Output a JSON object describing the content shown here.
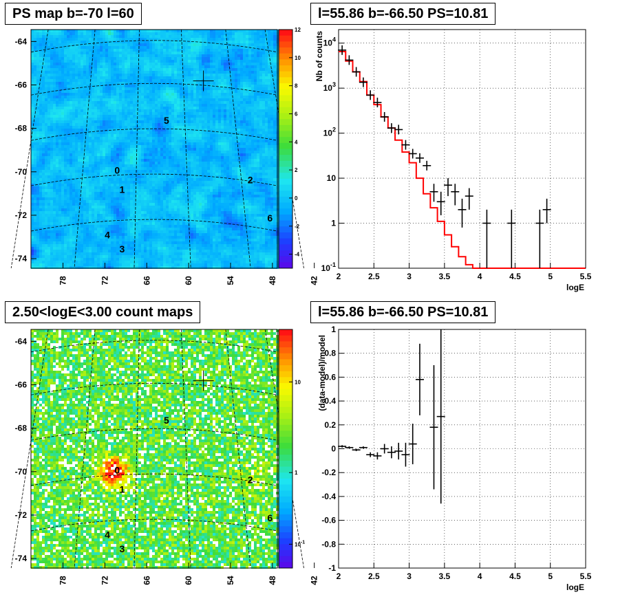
{
  "titles": {
    "top_left": "PS map b=-70 l=60",
    "top_right": "l=55.86 b=-66.50 PS=10.81",
    "bottom_left": "2.50<logE<3.00 count maps",
    "bottom_right": "l=55.86 b=-66.50 PS=10.81"
  },
  "colors": {
    "model_line": "#ff0000",
    "data_points": "#000000",
    "map_background_top": "#22e8f0",
    "map_background_bottom": "#55e040"
  },
  "chart_data": [
    {
      "type": "heatmap",
      "title": "PS map b=-70 l=60",
      "xticks": [
        "78",
        "72",
        "66",
        "60",
        "54",
        "48",
        "42"
      ],
      "yticks": [
        "-64",
        "-66",
        "-68",
        "-70",
        "-72",
        "-74"
      ],
      "colorbar": {
        "range": [
          -5,
          12
        ],
        "ticks": [
          "12",
          "10",
          "8",
          "6",
          "4",
          "2",
          "0",
          "-2",
          "-4"
        ]
      },
      "source_labels": [
        "0",
        "1",
        "2",
        "3",
        "4",
        "5",
        "6"
      ],
      "marker": "cross at l=55.86 b=-66.50"
    },
    {
      "type": "line",
      "title": "l=55.86 b=-66.50 PS=10.81",
      "xlabel": "logE",
      "ylabel": "Nb of counts",
      "xlim": [
        2,
        5.5
      ],
      "ylim": [
        0.1,
        20000
      ],
      "yscale": "log",
      "grid": true,
      "xticks": [
        "2",
        "2.5",
        "3",
        "3.5",
        "4",
        "4.5",
        "5",
        "5.5"
      ],
      "yticks": [
        "10^{4}",
        "10^{3}",
        "10^{2}",
        "10",
        "1",
        "10^{-1}"
      ],
      "series": [
        {
          "style": "step",
          "x": [
            2.0,
            2.1,
            2.2,
            2.3,
            2.4,
            2.5,
            2.6,
            2.7,
            2.8,
            2.9,
            3.0,
            3.1,
            3.2,
            3.3,
            3.4,
            3.5,
            3.6,
            3.7,
            3.8,
            3.9,
            4.0,
            4.5,
            5.0,
            5.5
          ],
          "values": [
            6500,
            4000,
            2300,
            1400,
            700,
            430,
            230,
            130,
            70,
            38,
            22,
            10,
            4.5,
            2.2,
            1.1,
            0.55,
            0.3,
            0.18,
            0.12,
            0.1,
            0.1,
            0.1,
            0.1,
            0.1
          ]
        },
        {
          "style": "points",
          "x": [
            2.05,
            2.15,
            2.25,
            2.35,
            2.45,
            2.55,
            2.65,
            2.75,
            2.85,
            2.95,
            3.05,
            3.15,
            3.25,
            3.35,
            3.45,
            3.55,
            3.65,
            3.75,
            3.85,
            4.1,
            4.45,
            4.85,
            4.95
          ],
          "values": [
            7000,
            4200,
            2300,
            1350,
            700,
            480,
            230,
            130,
            120,
            55,
            35,
            28,
            19,
            5,
            3,
            7,
            5,
            2,
            4,
            1,
            1,
            1,
            2
          ],
          "yerr_low": [
            0,
            0,
            0,
            0,
            0,
            0,
            0,
            0,
            0,
            0,
            0,
            0,
            0,
            2,
            1.5,
            3,
            2.5,
            1.2,
            2,
            0.99,
            0.99,
            0.99,
            1
          ],
          "yerr_high": [
            0,
            0,
            0,
            0,
            0,
            0,
            0,
            0,
            0,
            0,
            0,
            0,
            0,
            2.5,
            2,
            3,
            2.5,
            1.5,
            2,
            1,
            1,
            1,
            1.5
          ]
        }
      ]
    },
    {
      "type": "heatmap",
      "title": "2.50<logE<3.00 count maps",
      "xticks": [
        "78",
        "72",
        "66",
        "60",
        "54",
        "48",
        "42"
      ],
      "yticks": [
        "-64",
        "-66",
        "-68",
        "-70",
        "-72",
        "-74"
      ],
      "colorbar": {
        "scale": "log",
        "ticks": [
          "10",
          "1",
          "10^{-1}"
        ]
      },
      "source_labels": [
        "0",
        "1",
        "2",
        "3",
        "4",
        "5",
        "6"
      ]
    },
    {
      "type": "scatter",
      "title": "l=55.86 b=-66.50 PS=10.81",
      "xlabel": "logE",
      "ylabel": "(data-model)/model",
      "xlim": [
        2,
        5.5
      ],
      "ylim": [
        -1,
        1
      ],
      "grid": true,
      "xticks": [
        "2",
        "2.5",
        "3",
        "3.5",
        "4",
        "4.5",
        "5",
        "5.5"
      ],
      "yticks": [
        "1",
        "0.8",
        "0.6",
        "0.4",
        "0.2",
        "0",
        "-0.2",
        "-0.4",
        "-0.6",
        "-0.8",
        "-1"
      ],
      "x": [
        2.05,
        2.15,
        2.25,
        2.35,
        2.45,
        2.55,
        2.65,
        2.75,
        2.85,
        2.95,
        3.05,
        3.15,
        3.35,
        3.45
      ],
      "values": [
        0.02,
        0.01,
        -0.01,
        0.01,
        -0.05,
        -0.06,
        0.0,
        -0.03,
        -0.02,
        -0.05,
        0.04,
        0.58,
        0.18,
        0.27
      ],
      "yerr": [
        0.01,
        0.01,
        0.01,
        0.01,
        0.02,
        0.03,
        0.04,
        0.05,
        0.07,
        0.1,
        0.17,
        0.3,
        0.52,
        0.73
      ]
    }
  ]
}
